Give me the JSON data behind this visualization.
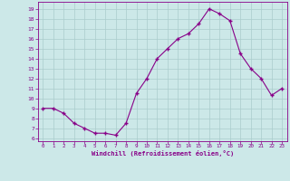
{
  "x": [
    0,
    1,
    2,
    3,
    4,
    5,
    6,
    7,
    8,
    9,
    10,
    11,
    12,
    13,
    14,
    15,
    16,
    17,
    18,
    19,
    20,
    21,
    22,
    23
  ],
  "y": [
    9,
    9,
    8.5,
    7.5,
    7,
    6.5,
    6.5,
    6.3,
    7.5,
    10.5,
    12,
    14,
    15,
    16,
    16.5,
    17.5,
    19,
    18.5,
    17.8,
    14.5,
    13,
    12,
    10.3,
    11
  ],
  "line_color": "#880088",
  "marker_color": "#880088",
  "bg_color": "#cce8e8",
  "grid_color": "#aacccc",
  "xlabel": "Windchill (Refroidissement éolien,°C)",
  "ytick_values": [
    6,
    7,
    8,
    9,
    10,
    11,
    12,
    13,
    14,
    15,
    16,
    17,
    18,
    19
  ],
  "ylim": [
    5.7,
    19.7
  ],
  "xlim": [
    -0.5,
    23.5
  ],
  "tick_color": "#880088",
  "spine_color": "#880088"
}
